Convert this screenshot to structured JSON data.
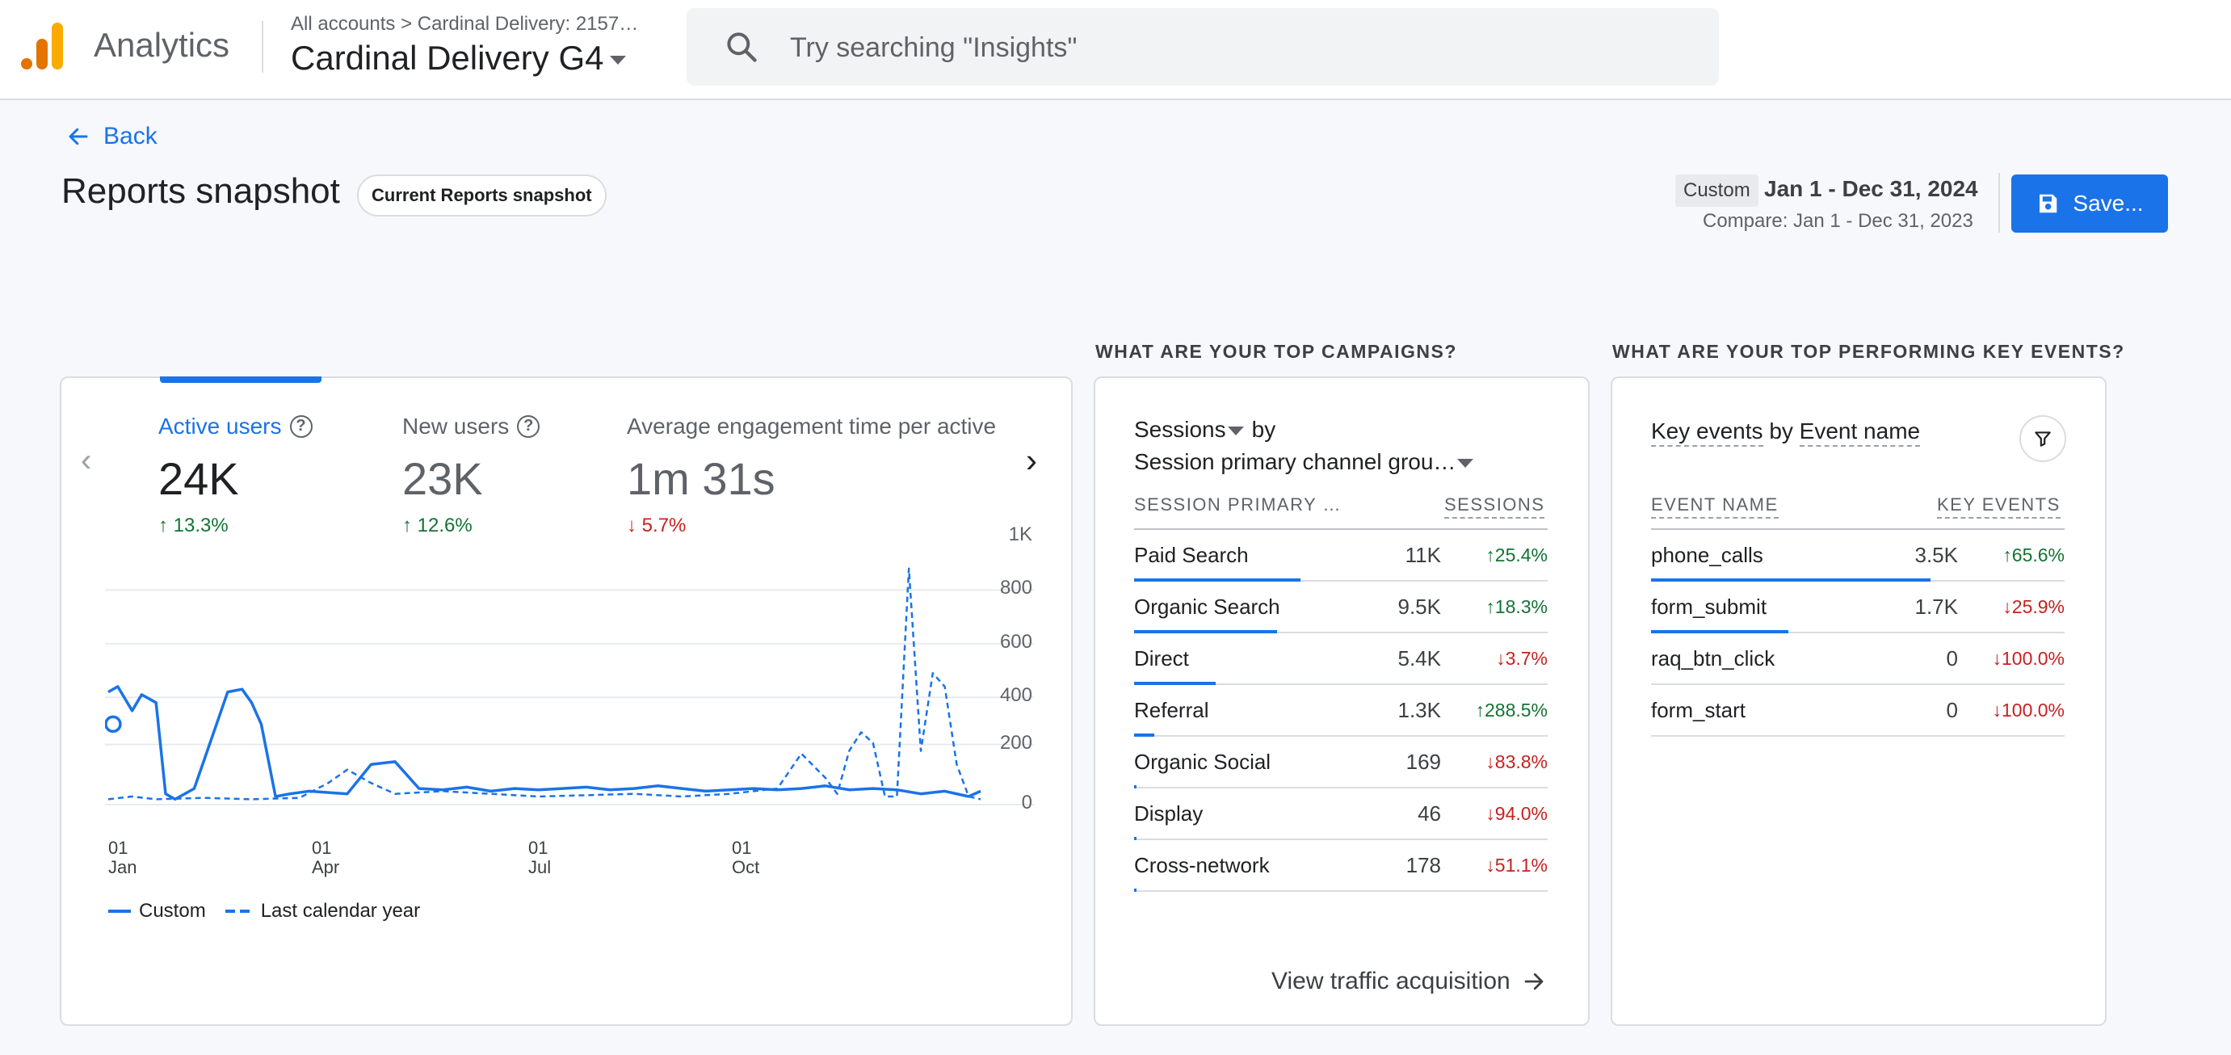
{
  "header": {
    "app_name": "Analytics",
    "breadcrumb": "All accounts > Cardinal Delivery: 2157…",
    "property": "Cardinal Delivery G4",
    "search_placeholder": "Try searching \"Insights\""
  },
  "page": {
    "back_label": "Back",
    "title": "Reports snapshot",
    "chip": "Current Reports snapshot",
    "date_custom": "Custom",
    "date_range": "Jan 1 - Dec 31, 2024",
    "compare": "Compare: Jan 1 - Dec 31, 2023",
    "save_label": "Save..."
  },
  "colors": {
    "accent": "#1a73e8",
    "positive": "#137333",
    "negative": "#c5221f"
  },
  "overview": {
    "metrics": [
      {
        "label": "Active users",
        "value": "24K",
        "delta": "13.3%",
        "direction": "up"
      },
      {
        "label": "New users",
        "value": "23K",
        "delta": "12.6%",
        "direction": "up"
      },
      {
        "label": "Average engagement time per active",
        "value": "1m 31s",
        "delta": "5.7%",
        "direction": "down"
      }
    ],
    "legend": {
      "current": "Custom",
      "previous": "Last calendar year"
    }
  },
  "chart_data": {
    "type": "line",
    "x_ticks": [
      {
        "day": "01",
        "month": "Jan"
      },
      {
        "day": "01",
        "month": "Apr"
      },
      {
        "day": "01",
        "month": "Jul"
      },
      {
        "day": "01",
        "month": "Oct"
      }
    ],
    "y_ticks": [
      "1K",
      "800",
      "600",
      "400",
      "200",
      "0"
    ],
    "ylim": [
      0,
      1000
    ],
    "grid": true,
    "legend_position": "bottom-left",
    "series": [
      {
        "name": "Custom",
        "style": "solid",
        "x": [
          0,
          4,
          10,
          14,
          20,
          24,
          28,
          36,
          50,
          56,
          60,
          64,
          70,
          76,
          84,
          100,
          110,
          120,
          130,
          140,
          150,
          160,
          170,
          180,
          190,
          200,
          210,
          220,
          230,
          240,
          250,
          260,
          270,
          280,
          290,
          300,
          310,
          320,
          330,
          340,
          350,
          360,
          365
        ],
        "values": [
          420,
          440,
          350,
          410,
          380,
          40,
          20,
          60,
          420,
          430,
          380,
          300,
          30,
          40,
          50,
          40,
          150,
          160,
          60,
          55,
          65,
          50,
          60,
          55,
          60,
          65,
          55,
          60,
          70,
          60,
          50,
          55,
          60,
          55,
          60,
          70,
          55,
          60,
          55,
          40,
          50,
          30,
          50
        ]
      },
      {
        "name": "Last calendar year",
        "style": "dashed",
        "x": [
          0,
          10,
          20,
          40,
          60,
          80,
          92,
          100,
          110,
          120,
          140,
          160,
          180,
          200,
          220,
          240,
          260,
          280,
          290,
          300,
          305,
          310,
          315,
          320,
          325,
          330,
          335,
          340,
          345,
          350,
          355,
          360,
          365
        ],
        "values": [
          20,
          30,
          20,
          25,
          20,
          25,
          80,
          130,
          80,
          40,
          50,
          40,
          30,
          35,
          40,
          30,
          40,
          60,
          190,
          100,
          40,
          200,
          270,
          230,
          30,
          30,
          880,
          200,
          490,
          440,
          150,
          30,
          20
        ]
      }
    ]
  },
  "campaigns": {
    "section_title": "WHAT ARE YOUR TOP CAMPAIGNS?",
    "metric_selector": "Sessions",
    "by": "by",
    "dimension_selector": "Session primary channel grou…",
    "col_dimension": "SESSION PRIMARY …",
    "col_metric": "SESSIONS",
    "rows": [
      {
        "label": "Paid Search",
        "value": "11K",
        "delta": "25.4%",
        "direction": "up",
        "share": 1.0
      },
      {
        "label": "Organic Search",
        "value": "9.5K",
        "delta": "18.3%",
        "direction": "up",
        "share": 0.86
      },
      {
        "label": "Direct",
        "value": "5.4K",
        "delta": "3.7%",
        "direction": "down",
        "share": 0.49
      },
      {
        "label": "Referral",
        "value": "1.3K",
        "delta": "288.5%",
        "direction": "up",
        "share": 0.12
      },
      {
        "label": "Organic Social",
        "value": "169",
        "delta": "83.8%",
        "direction": "down",
        "share": 0.015
      },
      {
        "label": "Display",
        "value": "46",
        "delta": "94.0%",
        "direction": "down",
        "share": 0.004
      },
      {
        "label": "Cross-network",
        "value": "178",
        "delta": "51.1%",
        "direction": "down",
        "share": 0.016
      }
    ],
    "view_link": "View traffic acquisition"
  },
  "key_events": {
    "section_title": "WHAT ARE YOUR TOP PERFORMING KEY EVENTS?",
    "metric": "Key events",
    "by": "by",
    "dimension": "Event name",
    "col_dimension": "EVENT NAME",
    "col_metric": "KEY EVENTS",
    "rows": [
      {
        "label": "phone_calls",
        "value": "3.5K",
        "delta": "65.6%",
        "direction": "up",
        "share": 1.0
      },
      {
        "label": "form_submit",
        "value": "1.7K",
        "delta": "25.9%",
        "direction": "down",
        "share": 0.49
      },
      {
        "label": "raq_btn_click",
        "value": "0",
        "delta": "100.0%",
        "direction": "down",
        "share": 0
      },
      {
        "label": "form_start",
        "value": "0",
        "delta": "100.0%",
        "direction": "down",
        "share": 0
      }
    ]
  }
}
